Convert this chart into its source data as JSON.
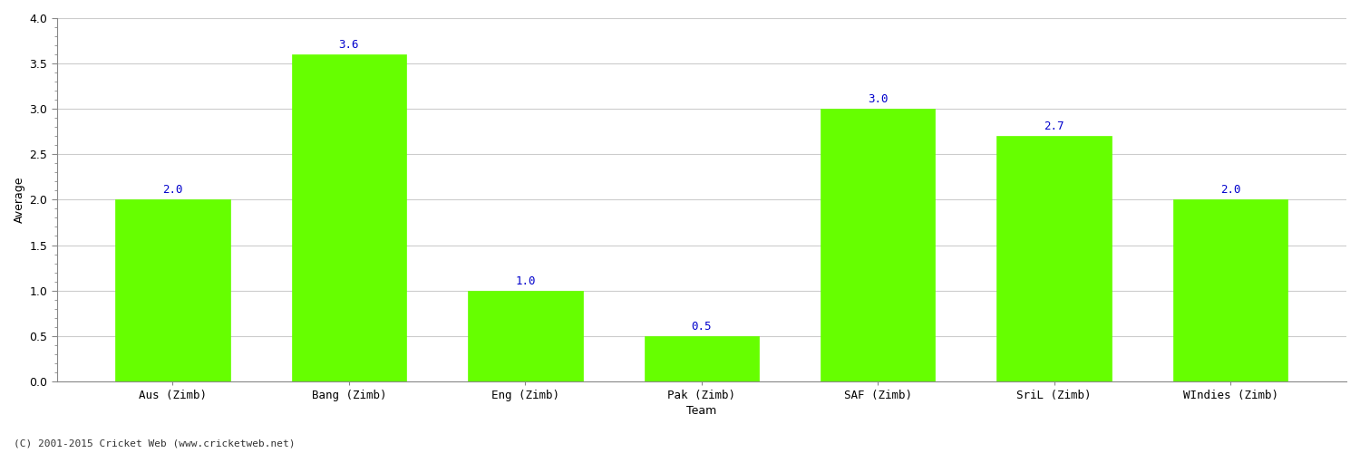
{
  "categories": [
    "Aus (Zimb)",
    "Bang (Zimb)",
    "Eng (Zimb)",
    "Pak (Zimb)",
    "SAF (Zimb)",
    "SriL (Zimb)",
    "WIndies (Zimb)"
  ],
  "values": [
    2.0,
    3.6,
    1.0,
    0.5,
    3.0,
    2.7,
    2.0
  ],
  "bar_color": "#66ff00",
  "bar_edge_color": "#66ff00",
  "xlabel": "Team",
  "ylabel": "Average",
  "ylim": [
    0.0,
    4.0
  ],
  "yticks": [
    0.0,
    0.5,
    1.0,
    1.5,
    2.0,
    2.5,
    3.0,
    3.5,
    4.0
  ],
  "value_labels": [
    "2.0",
    "3.6",
    "1.0",
    "0.5",
    "3.0",
    "2.7",
    "2.0"
  ],
  "value_color": "#0000cc",
  "grid_color": "#cccccc",
  "background_color": "#ffffff",
  "footer_text": "(C) 2001-2015 Cricket Web (www.cricketweb.net)",
  "label_fontsize": 9,
  "tick_fontsize": 9,
  "value_fontsize": 9,
  "bar_width": 0.65
}
